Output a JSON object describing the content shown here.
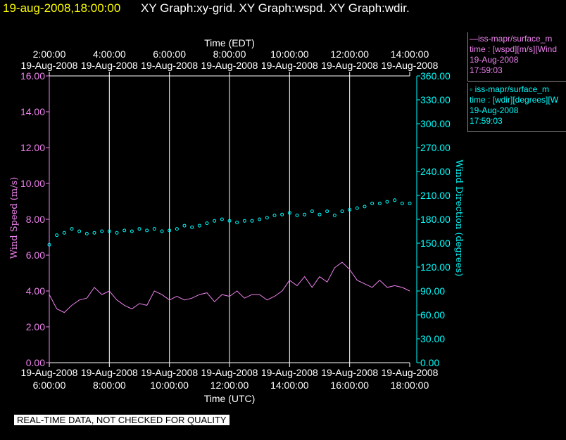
{
  "header": {
    "datetime": "19-aug-2008,18:00:00",
    "graphs": "XY Graph:xy-grid.  XY Graph:wspd.  XY Graph:wdir."
  },
  "footer": {
    "quality_label": "REAL-TIME DATA, NOT CHECKED FOR QUALITY"
  },
  "legend": {
    "wspd": {
      "line1": "—iss-mapr/surface_m",
      "line2": "time : [wspd][m/s][Wind",
      "line3": "19-Aug-2008",
      "line4": "17:59:03",
      "color": "#ee82ee"
    },
    "wdir": {
      "line1": "◦ iss-mapr/surface_m",
      "line2": "time : [wdir][degrees][W",
      "line3": "19-Aug-2008",
      "line4": "17:59:03",
      "color": "#00ffff"
    }
  },
  "chart_data": {
    "type": "line",
    "x_top_label": "Time (EDT)",
    "x_bottom_label": "Time (UTC)",
    "ylabel_left": "Wind Speed (m/s)",
    "ylabel_right": "Wind Direction (degrees)",
    "x_top_ticks": [
      [
        "2:00:00",
        "19-Aug-2008"
      ],
      [
        "4:00:00",
        "19-Aug-2008"
      ],
      [
        "6:00:00",
        "19-Aug-2008"
      ],
      [
        "8:00:00",
        "19-Aug-2008"
      ],
      [
        "10:00:00",
        "19-Aug-2008"
      ],
      [
        "12:00:00",
        "19-Aug-2008"
      ],
      [
        "14:00:00",
        "19-Aug-2008"
      ]
    ],
    "x_bottom_ticks": [
      [
        "19-Aug-2008",
        "6:00:00"
      ],
      [
        "19-Aug-2008",
        "8:00:00"
      ],
      [
        "19-Aug-2008",
        "10:00:00"
      ],
      [
        "19-Aug-2008",
        "12:00:00"
      ],
      [
        "19-Aug-2008",
        "14:00:00"
      ],
      [
        "19-Aug-2008",
        "16:00:00"
      ],
      [
        "19-Aug-2008",
        "18:00:00"
      ]
    ],
    "xlim_hours_utc": [
      6,
      18
    ],
    "y_left_ticks": [
      "0.00",
      "2.00",
      "4.00",
      "6.00",
      "8.00",
      "10.00",
      "12.00",
      "14.00",
      "16.00"
    ],
    "y_left_lim": [
      0,
      16
    ],
    "y_right_ticks": [
      "0.00",
      "30.00",
      "60.00",
      "90.00",
      "120.00",
      "150.00",
      "180.00",
      "210.00",
      "240.00",
      "270.00",
      "300.00",
      "330.00",
      "360.00"
    ],
    "y_right_lim": [
      0,
      360
    ],
    "grid": "vertical lines",
    "series": [
      {
        "name": "iss-mapr/surface_m time : [wspd][m/s][Wind",
        "axis": "left",
        "style": "line",
        "color": "#ee82ee",
        "x_hours_utc": [
          6.0,
          6.25,
          6.5,
          6.75,
          7.0,
          7.25,
          7.5,
          7.75,
          8.0,
          8.25,
          8.5,
          8.75,
          9.0,
          9.25,
          9.5,
          9.75,
          10.0,
          10.25,
          10.5,
          10.75,
          11.0,
          11.25,
          11.5,
          11.75,
          12.0,
          12.25,
          12.5,
          12.75,
          13.0,
          13.25,
          13.5,
          13.75,
          14.0,
          14.25,
          14.5,
          14.75,
          15.0,
          15.25,
          15.5,
          15.75,
          16.0,
          16.25,
          16.5,
          16.75,
          17.0,
          17.25,
          17.5,
          17.75,
          18.0
        ],
        "values": [
          3.8,
          3.0,
          2.8,
          3.2,
          3.5,
          3.6,
          4.2,
          3.8,
          4.0,
          3.5,
          3.2,
          3.0,
          3.3,
          3.2,
          4.0,
          3.8,
          3.5,
          3.7,
          3.5,
          3.6,
          3.8,
          3.9,
          3.4,
          3.8,
          3.7,
          4.0,
          3.6,
          3.8,
          3.8,
          3.5,
          3.7,
          4.0,
          4.6,
          4.3,
          4.8,
          4.2,
          4.8,
          4.5,
          5.3,
          5.6,
          5.2,
          4.6,
          4.4,
          4.2,
          4.6,
          4.2,
          4.3,
          4.2,
          4.0
        ]
      },
      {
        "name": "iss-mapr/surface_m time : [wdir][degrees][W",
        "axis": "right",
        "style": "points",
        "color": "#00ffff",
        "x_hours_utc": [
          6.0,
          6.25,
          6.5,
          6.75,
          7.0,
          7.25,
          7.5,
          7.75,
          8.0,
          8.25,
          8.5,
          8.75,
          9.0,
          9.25,
          9.5,
          9.75,
          10.0,
          10.25,
          10.5,
          10.75,
          11.0,
          11.25,
          11.5,
          11.75,
          12.0,
          12.25,
          12.5,
          12.75,
          13.0,
          13.25,
          13.5,
          13.75,
          14.0,
          14.25,
          14.5,
          14.75,
          15.0,
          15.25,
          15.5,
          15.75,
          16.0,
          16.25,
          16.5,
          16.75,
          17.0,
          17.25,
          17.5,
          17.75,
          18.0
        ],
        "values": [
          148,
          160,
          163,
          168,
          165,
          162,
          163,
          165,
          165,
          163,
          166,
          165,
          168,
          166,
          168,
          165,
          166,
          168,
          172,
          170,
          172,
          175,
          178,
          180,
          178,
          176,
          178,
          178,
          180,
          182,
          185,
          186,
          188,
          185,
          186,
          190,
          186,
          190,
          185,
          190,
          192,
          194,
          196,
          200,
          200,
          202,
          204,
          200,
          200
        ]
      }
    ]
  }
}
